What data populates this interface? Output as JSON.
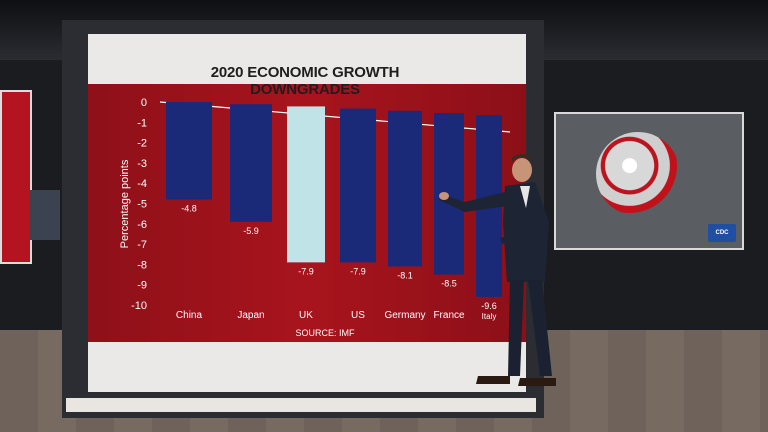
{
  "chart_data": {
    "type": "bar",
    "title": "2020 ECONOMIC GROWTH DOWNGRADES",
    "ylabel": "Percentage points",
    "xlabel": "",
    "source": "SOURCE: IMF",
    "ylim": [
      -10,
      0
    ],
    "yticks": [
      0,
      -1,
      -2,
      -3,
      -4,
      -5,
      -6,
      -7,
      -8,
      -9,
      -10
    ],
    "categories": [
      "China",
      "Japan",
      "UK",
      "US",
      "Germany",
      "France",
      "Italy"
    ],
    "values": [
      -4.8,
      -5.9,
      -7.9,
      -7.9,
      -8.1,
      -8.5,
      -9.6
    ],
    "value_labels": [
      "-4.8",
      "-5.9",
      "-7.9",
      "-7.9",
      "-8.1",
      "-8.5",
      "-9.6"
    ],
    "highlight": "UK",
    "colors": {
      "bar": "#1b2a78",
      "highlight": "#bfe3e6",
      "text": "#ffffff",
      "background": "#a8141d"
    },
    "grid": false
  },
  "cdc_badge": "CDC",
  "icons": [
    "coronavirus-icon",
    "cdc-logo-icon"
  ]
}
